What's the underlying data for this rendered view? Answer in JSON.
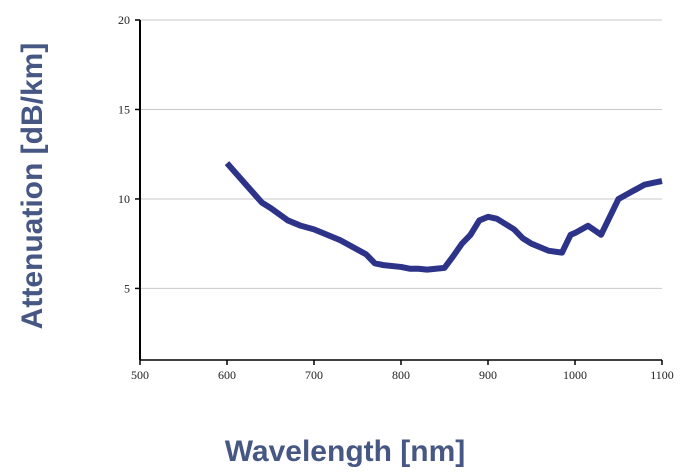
{
  "chart_data": {
    "type": "line",
    "title": "",
    "xlabel": "Wavelength [nm]",
    "ylabel": "Attenuation [dB/km]",
    "xlim": [
      500,
      1100
    ],
    "ylim": [
      1,
      20
    ],
    "x_ticks": [
      500,
      600,
      700,
      800,
      900,
      1000,
      1100
    ],
    "y_ticks": [
      5,
      10,
      15,
      20
    ],
    "grid": true,
    "series": [
      {
        "name": "",
        "x": [
          600,
          620,
          640,
          650,
          670,
          685,
          700,
          715,
          730,
          745,
          760,
          770,
          780,
          800,
          810,
          820,
          830,
          840,
          850,
          860,
          870,
          880,
          890,
          900,
          910,
          920,
          930,
          940,
          950,
          960,
          970,
          985,
          995,
          1000,
          1015,
          1030,
          1040,
          1050,
          1065,
          1080,
          1090,
          1100
        ],
        "y": [
          12.0,
          10.9,
          9.8,
          9.5,
          8.8,
          8.5,
          8.3,
          8.0,
          7.7,
          7.3,
          6.9,
          6.4,
          6.3,
          6.2,
          6.1,
          6.1,
          6.05,
          6.1,
          6.15,
          6.8,
          7.5,
          8.0,
          8.8,
          9.0,
          8.9,
          8.6,
          8.3,
          7.8,
          7.5,
          7.3,
          7.1,
          7.0,
          8.0,
          8.1,
          8.5,
          8.0,
          9.0,
          10.0,
          10.4,
          10.8,
          10.9,
          11.0
        ]
      }
    ],
    "colors": {
      "line": "#2d3389",
      "axis": "#000000",
      "grid": "#c8c8c8",
      "title_text": "#475783"
    }
  }
}
